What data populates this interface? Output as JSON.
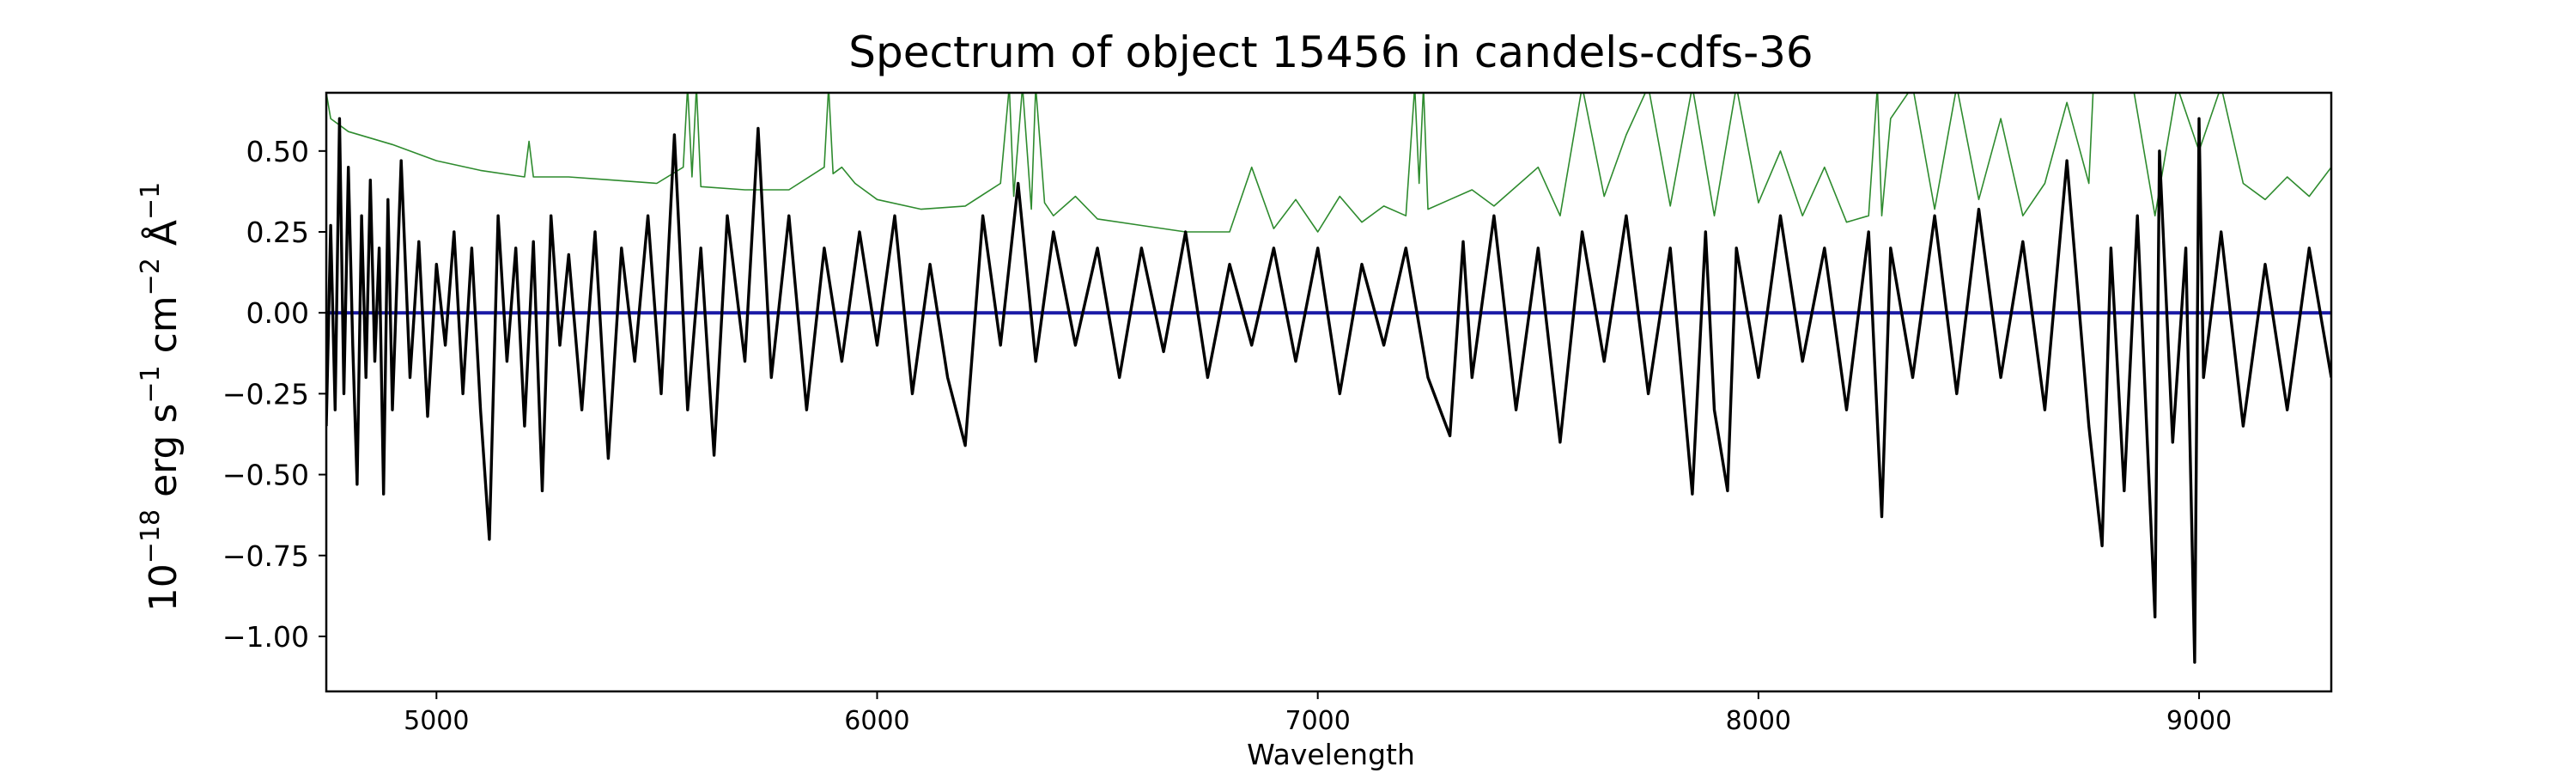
{
  "chart_data": {
    "type": "line",
    "title": "Spectrum of object 15456 in candels-cdfs-36",
    "xlabel": "Wavelength",
    "ylabel_parts": {
      "base": "10",
      "exp": "−18",
      "unit1": " erg s",
      "exp1": "−1",
      "unit2": " cm",
      "exp2": "−2",
      "unit3": " Å",
      "exp3": "−1"
    },
    "xlim": [
      4750,
      9300
    ],
    "ylim": [
      -1.17,
      0.68
    ],
    "xticks": [
      5000,
      6000,
      7000,
      8000,
      9000
    ],
    "xtick_labels": [
      "5000",
      "6000",
      "7000",
      "8000",
      "9000"
    ],
    "yticks": [
      0.5,
      0.25,
      0.0,
      -0.25,
      -0.5,
      -0.75,
      -1.0
    ],
    "ytick_labels": [
      "0.50",
      "0.25",
      "0.00",
      "−0.25",
      "−0.50",
      "−0.75",
      "−1.00"
    ],
    "grid": false,
    "series": [
      {
        "role": "error-spectrum",
        "color": "#2e8b2e",
        "x": [
          4750,
          4760,
          4800,
          4900,
          5000,
          5100,
          5200,
          5210,
          5220,
          5300,
          5400,
          5500,
          5560,
          5570,
          5580,
          5590,
          5600,
          5700,
          5800,
          5880,
          5890,
          5900,
          5920,
          5950,
          6000,
          6100,
          6200,
          6280,
          6300,
          6310,
          6330,
          6350,
          6360,
          6380,
          6400,
          6450,
          6500,
          6600,
          6700,
          6800,
          6850,
          6900,
          6950,
          7000,
          7050,
          7100,
          7150,
          7200,
          7220,
          7230,
          7240,
          7250,
          7300,
          7350,
          7400,
          7500,
          7550,
          7600,
          7650,
          7700,
          7750,
          7800,
          7850,
          7900,
          7950,
          8000,
          8050,
          8100,
          8150,
          8200,
          8250,
          8270,
          8280,
          8300,
          8350,
          8400,
          8450,
          8500,
          8550,
          8600,
          8650,
          8700,
          8750,
          8760,
          8800,
          8850,
          8900,
          8950,
          9000,
          9050,
          9100,
          9150,
          9200,
          9250,
          9300
        ],
        "y": [
          0.68,
          0.6,
          0.56,
          0.52,
          0.47,
          0.44,
          0.42,
          0.53,
          0.42,
          0.42,
          0.41,
          0.4,
          0.45,
          0.7,
          0.42,
          0.7,
          0.39,
          0.38,
          0.38,
          0.45,
          0.7,
          0.43,
          0.45,
          0.4,
          0.35,
          0.32,
          0.33,
          0.4,
          0.7,
          0.36,
          0.7,
          0.32,
          0.7,
          0.34,
          0.3,
          0.36,
          0.29,
          0.27,
          0.25,
          0.25,
          0.45,
          0.26,
          0.35,
          0.25,
          0.36,
          0.28,
          0.33,
          0.3,
          0.7,
          0.4,
          0.7,
          0.32,
          0.35,
          0.38,
          0.33,
          0.45,
          0.3,
          0.7,
          0.36,
          0.55,
          0.7,
          0.33,
          0.7,
          0.3,
          0.7,
          0.34,
          0.5,
          0.3,
          0.45,
          0.28,
          0.3,
          0.7,
          0.3,
          0.6,
          0.7,
          0.32,
          0.7,
          0.35,
          0.6,
          0.3,
          0.4,
          0.65,
          0.4,
          0.7,
          0.7,
          0.7,
          0.3,
          0.7,
          0.5,
          0.7,
          0.4,
          0.35,
          0.42,
          0.36,
          0.45
        ]
      },
      {
        "role": "model",
        "color": "#1a1aa6",
        "x": [
          4750,
          9300
        ],
        "y": [
          0.0,
          0.0
        ]
      },
      {
        "role": "flux",
        "color": "#000000",
        "x": [
          4750,
          4760,
          4770,
          4780,
          4790,
          4800,
          4810,
          4820,
          4830,
          4840,
          4850,
          4860,
          4870,
          4880,
          4890,
          4900,
          4920,
          4940,
          4960,
          4980,
          5000,
          5020,
          5040,
          5060,
          5080,
          5100,
          5120,
          5140,
          5160,
          5180,
          5200,
          5220,
          5240,
          5260,
          5280,
          5300,
          5330,
          5360,
          5390,
          5420,
          5450,
          5480,
          5510,
          5540,
          5570,
          5600,
          5630,
          5660,
          5700,
          5730,
          5760,
          5800,
          5840,
          5880,
          5920,
          5960,
          6000,
          6040,
          6080,
          6120,
          6160,
          6200,
          6240,
          6280,
          6320,
          6360,
          6400,
          6450,
          6500,
          6550,
          6600,
          6650,
          6700,
          6750,
          6800,
          6850,
          6900,
          6950,
          7000,
          7050,
          7100,
          7150,
          7200,
          7250,
          7300,
          7330,
          7350,
          7400,
          7450,
          7500,
          7550,
          7600,
          7650,
          7700,
          7750,
          7800,
          7850,
          7880,
          7900,
          7930,
          7950,
          8000,
          8050,
          8100,
          8150,
          8200,
          8250,
          8280,
          8300,
          8350,
          8400,
          8450,
          8500,
          8550,
          8600,
          8650,
          8700,
          8750,
          8780,
          8800,
          8830,
          8860,
          8900,
          8910,
          8940,
          8970,
          8990,
          9000,
          9010,
          9050,
          9100,
          9150,
          9200,
          9250,
          9300
        ],
        "y": [
          -0.35,
          0.27,
          -0.3,
          0.6,
          -0.25,
          0.45,
          -0.1,
          -0.53,
          0.3,
          -0.2,
          0.41,
          -0.15,
          0.2,
          -0.56,
          0.35,
          -0.3,
          0.47,
          -0.2,
          0.22,
          -0.32,
          0.15,
          -0.1,
          0.25,
          -0.25,
          0.2,
          -0.3,
          -0.7,
          0.3,
          -0.15,
          0.2,
          -0.35,
          0.22,
          -0.55,
          0.3,
          -0.1,
          0.18,
          -0.3,
          0.25,
          -0.45,
          0.2,
          -0.15,
          0.3,
          -0.25,
          0.55,
          -0.3,
          0.2,
          -0.44,
          0.3,
          -0.15,
          0.57,
          -0.2,
          0.3,
          -0.3,
          0.2,
          -0.15,
          0.25,
          -0.1,
          0.3,
          -0.25,
          0.15,
          -0.2,
          -0.41,
          0.3,
          -0.1,
          0.4,
          -0.15,
          0.25,
          -0.1,
          0.2,
          -0.2,
          0.2,
          -0.12,
          0.25,
          -0.2,
          0.15,
          -0.1,
          0.2,
          -0.15,
          0.2,
          -0.25,
          0.15,
          -0.1,
          0.2,
          -0.2,
          -0.38,
          0.22,
          -0.2,
          0.3,
          -0.3,
          0.2,
          -0.4,
          0.25,
          -0.15,
          0.3,
          -0.25,
          0.2,
          -0.56,
          0.25,
          -0.3,
          -0.55,
          0.2,
          -0.2,
          0.3,
          -0.15,
          0.2,
          -0.3,
          0.25,
          -0.63,
          0.2,
          -0.2,
          0.3,
          -0.25,
          0.32,
          -0.2,
          0.22,
          -0.3,
          0.47,
          -0.35,
          -0.72,
          0.2,
          -0.55,
          0.3,
          -0.94,
          0.5,
          -0.4,
          0.2,
          -1.08,
          0.6,
          -0.2,
          0.25,
          -0.35,
          0.15,
          -0.3,
          0.2,
          -0.2
        ]
      }
    ]
  }
}
